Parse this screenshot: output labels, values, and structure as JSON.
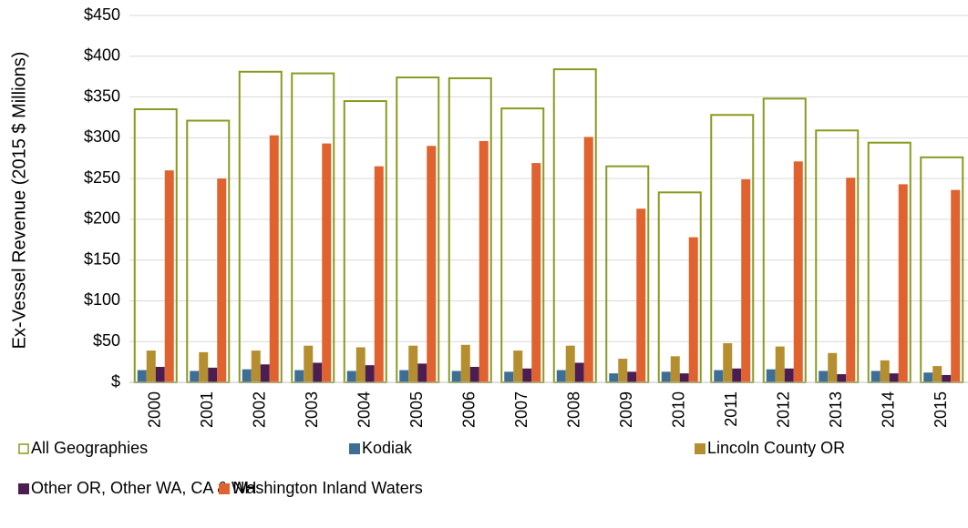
{
  "chart_data": {
    "type": "bar",
    "y_axis_label": "Ex-Vessel Revenue (2015 $ Millions)",
    "categories": [
      "2000",
      "2001",
      "2002",
      "2003",
      "2004",
      "2005",
      "2006",
      "2007",
      "2008",
      "2009",
      "2010",
      "2011",
      "2012",
      "2013",
      "2014",
      "2015"
    ],
    "series": [
      {
        "name": "All Geographies",
        "color": "#8a9a1e",
        "hollow": true,
        "values": [
          335,
          321,
          381,
          379,
          345,
          374,
          373,
          336,
          384,
          265,
          233,
          328,
          348,
          309,
          294,
          276
        ]
      },
      {
        "name": "Kodiak",
        "color": "#3e6e93",
        "values": [
          15,
          14,
          16,
          15,
          14,
          15,
          14,
          13,
          15,
          11,
          13,
          15,
          16,
          14,
          14,
          12
        ]
      },
      {
        "name": "Lincoln County OR",
        "color": "#b58f2f",
        "values": [
          39,
          37,
          39,
          45,
          43,
          45,
          46,
          39,
          45,
          29,
          32,
          48,
          44,
          36,
          27,
          20
        ]
      },
      {
        "name": "Other OR, Other WA, CA & NH",
        "color": "#4b1d50",
        "values": [
          19,
          18,
          22,
          24,
          21,
          23,
          19,
          17,
          24,
          13,
          11,
          17,
          17,
          10,
          11,
          9
        ]
      },
      {
        "name": "Washington Inland Waters",
        "color": "#e0622f",
        "values": [
          260,
          250,
          303,
          293,
          265,
          290,
          296,
          269,
          301,
          213,
          178,
          249,
          271,
          251,
          243,
          236
        ]
      }
    ],
    "ylim": [
      0,
      450
    ],
    "yticks": [
      {
        "value": 0,
        "label": "$"
      },
      {
        "value": 50,
        "label": "$50"
      },
      {
        "value": 100,
        "label": "$100"
      },
      {
        "value": 150,
        "label": "$150"
      },
      {
        "value": 200,
        "label": "$200"
      },
      {
        "value": 250,
        "label": "$250"
      },
      {
        "value": 300,
        "label": "$300"
      },
      {
        "value": 350,
        "label": "$350"
      },
      {
        "value": 400,
        "label": "$400"
      },
      {
        "value": 450,
        "label": "$450"
      }
    ],
    "grid": true,
    "legend": "bottom"
  }
}
